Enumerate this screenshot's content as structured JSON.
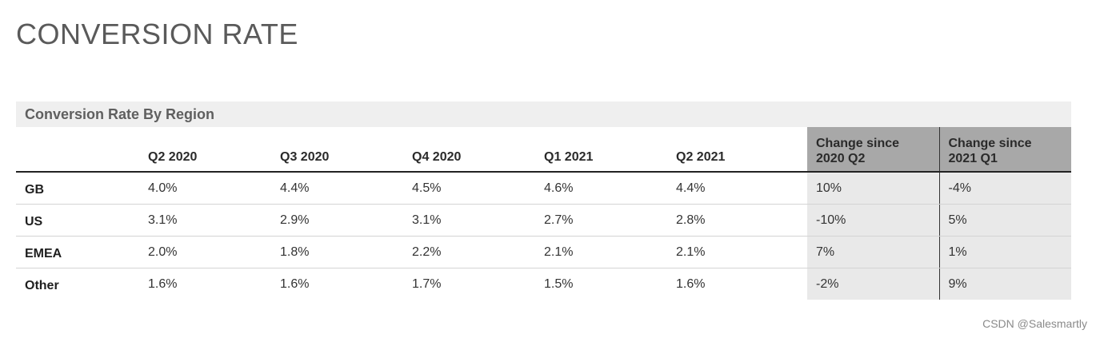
{
  "page": {
    "title": "CONVERSION RATE"
  },
  "table": {
    "section_title": "Conversion Rate By Region",
    "columns": {
      "region": "",
      "q2_2020": "Q2 2020",
      "q3_2020": "Q3 2020",
      "q4_2020": "Q4 2020",
      "q1_2021": "Q1 2021",
      "q2_2021": "Q2 2021",
      "change_2020q2_line1": "Change since",
      "change_2020q2_line2": "2020 Q2",
      "change_2021q1_line1": "Change since",
      "change_2021q1_line2": "2021 Q1"
    },
    "rows": [
      {
        "region": "GB",
        "values": [
          "4.0%",
          "4.4%",
          "4.5%",
          "4.6%",
          "4.4%"
        ],
        "change_2020q2": "10%",
        "change_2021q1": "-4%"
      },
      {
        "region": "US",
        "values": [
          "3.1%",
          "2.9%",
          "3.1%",
          "2.7%",
          "2.8%"
        ],
        "change_2020q2": "-10%",
        "change_2021q1": "5%"
      },
      {
        "region": "EMEA",
        "values": [
          "2.0%",
          "1.8%",
          "2.2%",
          "2.1%",
          "2.1%"
        ],
        "change_2020q2": "7%",
        "change_2021q1": "1%"
      },
      {
        "region": "Other",
        "values": [
          "1.6%",
          "1.6%",
          "1.7%",
          "1.5%",
          "1.6%"
        ],
        "change_2020q2": "-2%",
        "change_2021q1": "9%"
      }
    ]
  },
  "watermark": "CSDN @Salesmartly"
}
